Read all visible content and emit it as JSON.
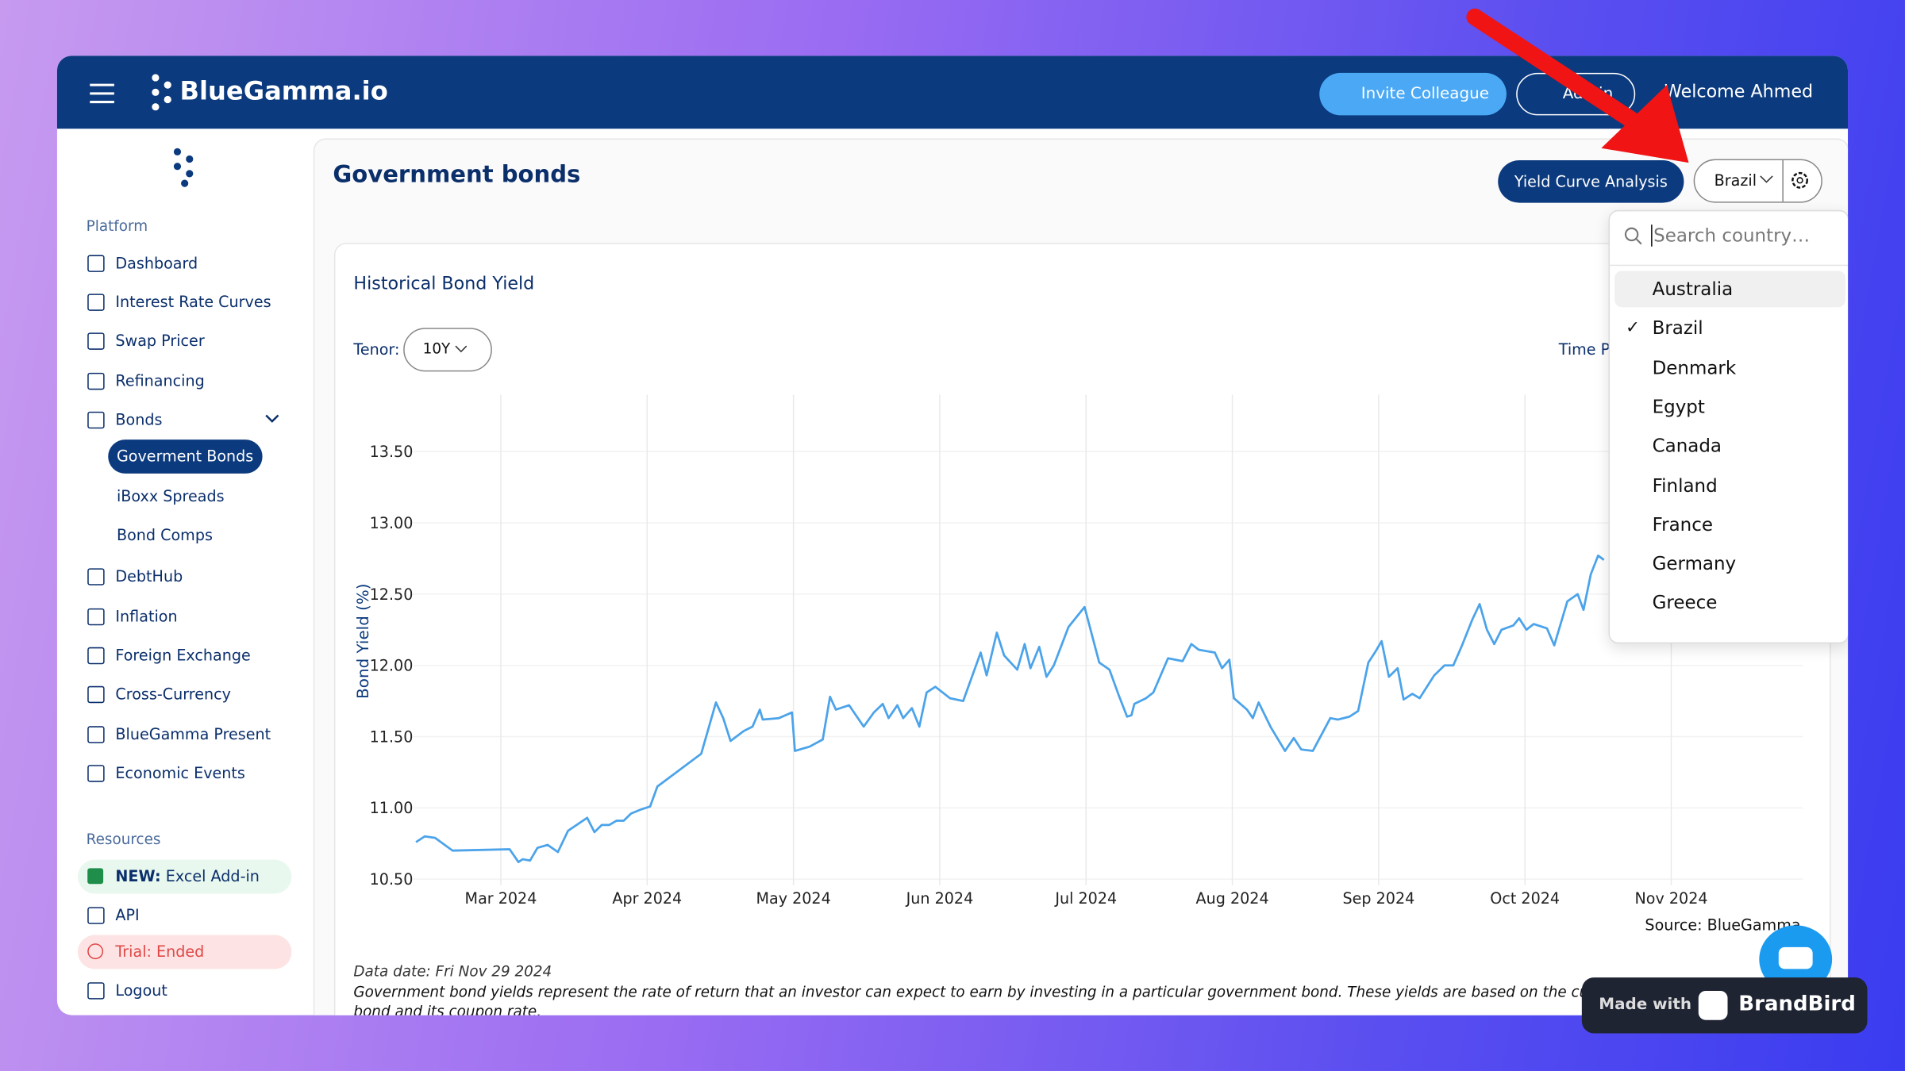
{
  "header": {
    "logo": "BlueGamma.io",
    "invite": "Invite Colleague",
    "admin": "Admin",
    "welcome": "Welcome Ahmed"
  },
  "sidebar": {
    "platform_heading": "Platform",
    "nav": [
      "Dashboard",
      "Interest Rate Curves",
      "Swap Pricer",
      "Refinancing",
      "Bonds"
    ],
    "bonds_sub": [
      "Goverment Bonds",
      "iBoxx Spreads",
      "Bond Comps"
    ],
    "nav2": [
      "DebtHub",
      "Inflation",
      "Foreign Exchange",
      "Cross-Currency",
      "BlueGamma Present",
      "Economic Events"
    ],
    "resources_heading": "Resources",
    "excel": {
      "badge": "NEW:",
      "label": "Excel Add-in"
    },
    "api": "API",
    "trial": "Trial: Ended",
    "logout": "Logout"
  },
  "page": {
    "title": "Government bonds",
    "yield_button": "Yield Curve Analysis",
    "country": "Brazil"
  },
  "dropdown": {
    "placeholder": "Search country…",
    "options": [
      "Australia",
      "Brazil",
      "Denmark",
      "Egypt",
      "Canada",
      "Finland",
      "France",
      "Germany",
      "Greece"
    ],
    "highlighted": 0,
    "selected": 1
  },
  "chart_card": {
    "title": "Historical Bond Yield",
    "tenor_label": "Tenor:",
    "tenor": "10Y",
    "time_period": "Time P",
    "source": "Source: BlueGamma",
    "data_date": "Data date: Fri Nov 29 2024",
    "description": "Government bond yields represent the rate of return that an investor can expect to earn by investing in a particular government bond. These yields are based on the current market price of the bond and its coupon rate."
  },
  "badge": {
    "made_with": "Made with",
    "brand": "BrandBird"
  },
  "chart_data": {
    "type": "line",
    "y_label": "Bond Yield (%)",
    "color": "#4ba3ea",
    "grid": true,
    "x": [
      0.42,
      0.48,
      0.55,
      0.67,
      1.06,
      1.12,
      1.15,
      1.2,
      1.25,
      1.32,
      1.39,
      1.46,
      1.59,
      1.64,
      1.69,
      1.74,
      1.79,
      1.84,
      1.89,
      1.96,
      2.02,
      2.07,
      2.37,
      2.47,
      2.52,
      2.57,
      2.66,
      2.72,
      2.77,
      2.79,
      2.9,
      2.99,
      3.01,
      3.11,
      3.2,
      3.25,
      3.29,
      3.38,
      3.48,
      3.55,
      3.61,
      3.65,
      3.71,
      3.75,
      3.81,
      3.86,
      3.91,
      3.97,
      4.07,
      4.16,
      4.28,
      4.32,
      4.39,
      4.44,
      4.53,
      4.58,
      4.62,
      4.68,
      4.73,
      4.78,
      4.88,
      4.99,
      5.09,
      5.16,
      5.22,
      5.28,
      5.31,
      5.33,
      5.41,
      5.46,
      5.56,
      5.66,
      5.72,
      5.77,
      5.88,
      5.93,
      5.98,
      6.01,
      6.1,
      6.14,
      6.18,
      6.26,
      6.36,
      6.42,
      6.47,
      6.55,
      6.67,
      6.72,
      6.8,
      6.86,
      6.93,
      6.98,
      7.02,
      7.07,
      7.13,
      7.17,
      7.23,
      7.28,
      7.38,
      7.45,
      7.51,
      7.57,
      7.64,
      7.69,
      7.74,
      7.79,
      7.84,
      7.92,
      7.96,
      8.01,
      8.06,
      8.15,
      8.2,
      8.29,
      8.36,
      8.4,
      8.45,
      8.5,
      8.54
    ],
    "values": [
      10.76,
      10.8,
      10.79,
      10.7,
      10.71,
      10.62,
      10.64,
      10.63,
      10.72,
      10.74,
      10.69,
      10.84,
      10.93,
      10.83,
      10.88,
      10.88,
      10.91,
      10.91,
      10.96,
      10.99,
      11.01,
      11.15,
      11.38,
      11.74,
      11.63,
      11.47,
      11.54,
      11.57,
      11.69,
      11.62,
      11.63,
      11.67,
      11.4,
      11.43,
      11.48,
      11.78,
      11.69,
      11.72,
      11.57,
      11.67,
      11.73,
      11.63,
      11.72,
      11.63,
      11.7,
      11.57,
      11.81,
      11.85,
      11.77,
      11.75,
      12.09,
      11.93,
      12.23,
      12.07,
      11.97,
      12.15,
      11.98,
      12.13,
      11.92,
      12.0,
      12.27,
      12.41,
      12.02,
      11.97,
      11.8,
      11.64,
      11.65,
      11.73,
      11.77,
      11.81,
      12.05,
      12.03,
      12.15,
      12.11,
      12.09,
      11.98,
      12.04,
      11.77,
      11.69,
      11.63,
      11.74,
      11.57,
      11.4,
      11.49,
      11.41,
      11.4,
      11.63,
      11.62,
      11.64,
      11.68,
      12.02,
      12.1,
      12.17,
      11.92,
      11.98,
      11.76,
      11.8,
      11.77,
      11.93,
      12.0,
      12.0,
      12.14,
      12.32,
      12.43,
      12.25,
      12.15,
      12.25,
      12.28,
      12.33,
      12.25,
      12.29,
      12.26,
      12.14,
      12.45,
      12.5,
      12.39,
      12.64,
      12.77,
      12.74
    ],
    "xlim": [
      0.4,
      9.9
    ],
    "xticks": [
      {
        "value": 1,
        "label": "Mar 2024"
      },
      {
        "value": 2,
        "label": "Apr 2024"
      },
      {
        "value": 3,
        "label": "May 2024"
      },
      {
        "value": 4,
        "label": "Jun 2024"
      },
      {
        "value": 5,
        "label": "Jul 2024"
      },
      {
        "value": 6,
        "label": "Aug 2024"
      },
      {
        "value": 7,
        "label": "Sep 2024"
      },
      {
        "value": 8,
        "label": "Oct 2024"
      },
      {
        "value": 9,
        "label": "Nov 2024"
      }
    ],
    "ylim": [
      10.5,
      13.9
    ],
    "yticks": [
      {
        "value": 10.5,
        "label": "10.50"
      },
      {
        "value": 11,
        "label": "11.00"
      },
      {
        "value": 11.5,
        "label": "11.50"
      },
      {
        "value": 12,
        "label": "12.00"
      },
      {
        "value": 12.5,
        "label": "12.50"
      },
      {
        "value": 13,
        "label": "13.00"
      },
      {
        "value": 13.5,
        "label": "13.50"
      }
    ]
  }
}
